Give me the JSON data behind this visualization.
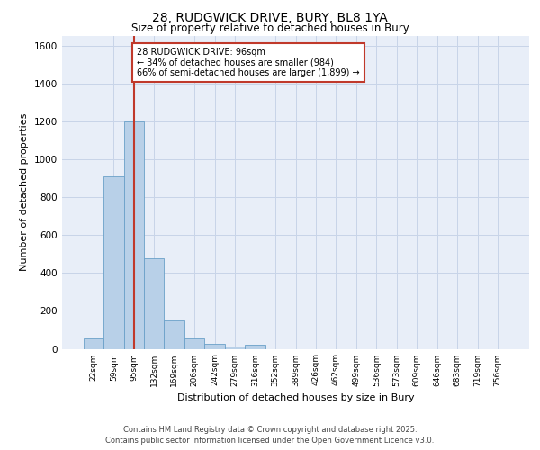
{
  "title_line1": "28, RUDGWICK DRIVE, BURY, BL8 1YA",
  "title_line2": "Size of property relative to detached houses in Bury",
  "xlabel": "Distribution of detached houses by size in Bury",
  "ylabel": "Number of detached properties",
  "categories": [
    "22sqm",
    "59sqm",
    "95sqm",
    "132sqm",
    "169sqm",
    "206sqm",
    "242sqm",
    "279sqm",
    "316sqm",
    "352sqm",
    "389sqm",
    "426sqm",
    "462sqm",
    "499sqm",
    "536sqm",
    "573sqm",
    "609sqm",
    "646sqm",
    "683sqm",
    "719sqm",
    "756sqm"
  ],
  "values": [
    55,
    910,
    1200,
    475,
    150,
    55,
    28,
    12,
    20,
    0,
    0,
    0,
    0,
    0,
    0,
    0,
    0,
    0,
    0,
    0,
    0
  ],
  "bar_color": "#b8d0e8",
  "bar_edge_color": "#6aa0c8",
  "vline_color": "#c0392b",
  "vline_x": 2.0,
  "annotation_box_text": "28 RUDGWICK DRIVE: 96sqm\n← 34% of detached houses are smaller (984)\n66% of semi-detached houses are larger (1,899) →",
  "annotation_box_color": "#c0392b",
  "annotation_box_bg": "white",
  "ylim": [
    0,
    1650
  ],
  "yticks": [
    0,
    200,
    400,
    600,
    800,
    1000,
    1200,
    1400,
    1600
  ],
  "grid_color": "#c8d4e8",
  "bg_color": "#e8eef8",
  "footer_line1": "Contains HM Land Registry data © Crown copyright and database right 2025.",
  "footer_line2": "Contains public sector information licensed under the Open Government Licence v3.0."
}
